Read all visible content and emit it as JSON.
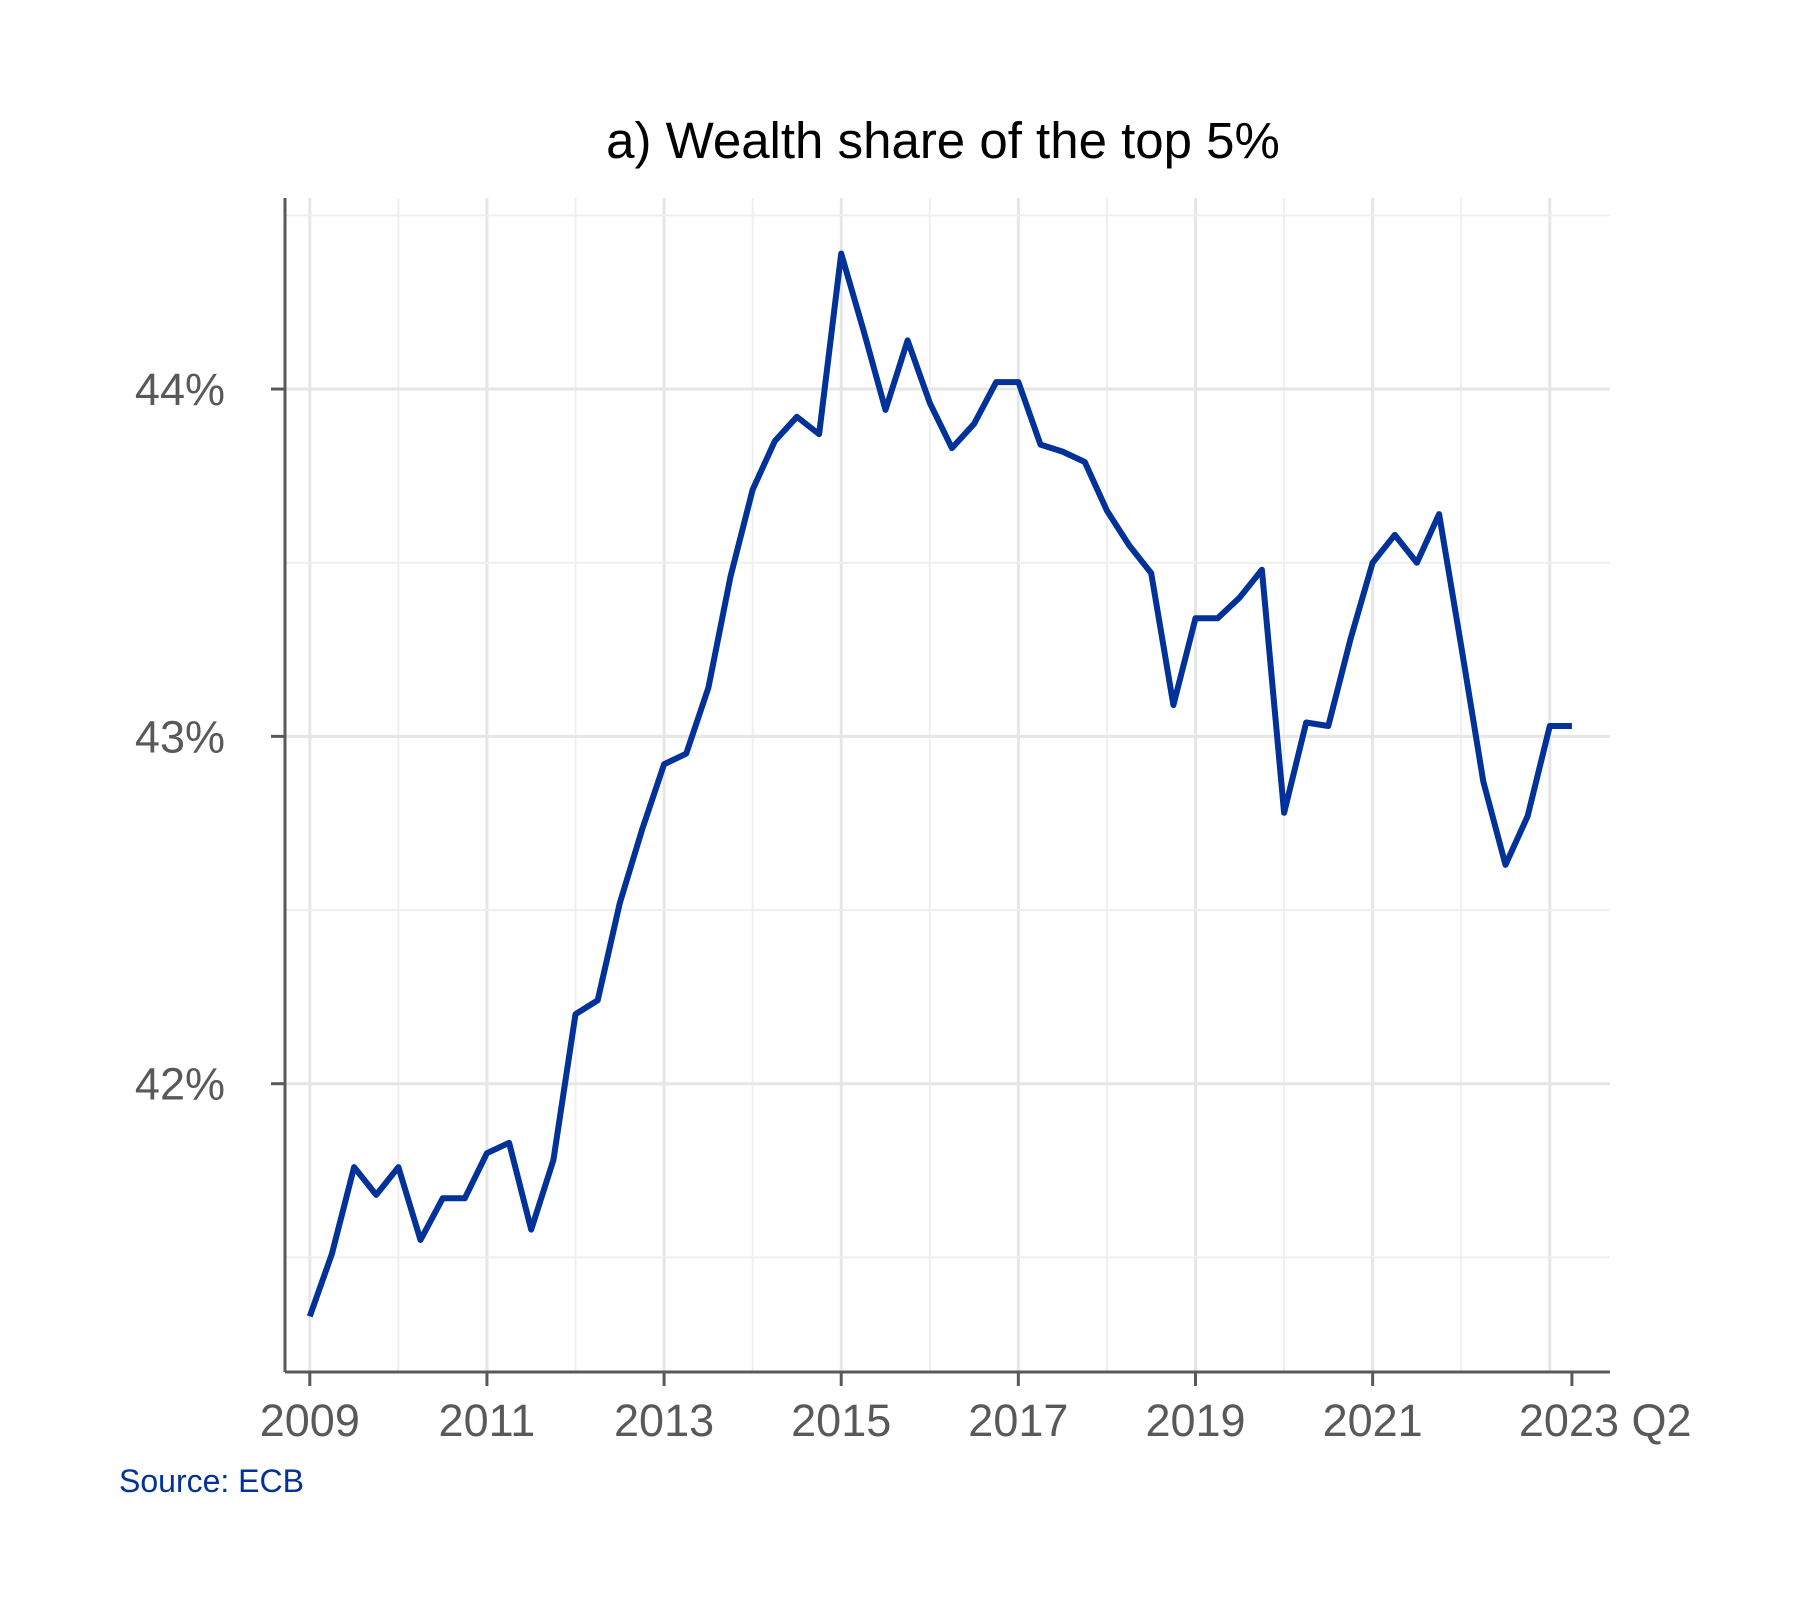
{
  "chart_data": {
    "type": "line",
    "title": "a) Wealth share of the top 5%",
    "xlabel": "",
    "ylabel": "",
    "x_tick_labels": [
      "2009",
      "2011",
      "2013",
      "2015",
      "2017",
      "2019",
      "2021",
      "2023 Q2"
    ],
    "y_tick_labels": [
      "42%",
      "43%",
      "44%"
    ],
    "y_ticks": [
      42,
      43,
      44
    ],
    "ylim": [
      41.17,
      44.55
    ],
    "xlim": [
      2008.72,
      2023.68
    ],
    "grid": true,
    "legend": "none",
    "line_color": "#003299",
    "series": [
      {
        "x": [
          2009.0,
          2009.25,
          2009.5,
          2009.75,
          2010.0,
          2010.25,
          2010.5,
          2010.75,
          2011.0,
          2011.25,
          2011.5,
          2011.75,
          2012.0,
          2012.25,
          2012.5,
          2012.75,
          2013.0,
          2013.25,
          2013.5,
          2013.75,
          2014.0,
          2014.25,
          2014.5,
          2014.75,
          2015.0,
          2015.25,
          2015.5,
          2015.75,
          2016.0,
          2016.25,
          2016.5,
          2016.75,
          2017.0,
          2017.25,
          2017.5,
          2017.75,
          2018.0,
          2018.25,
          2018.5,
          2018.75,
          2019.0,
          2019.25,
          2019.5,
          2019.75,
          2020.0,
          2020.25,
          2020.5,
          2020.75,
          2021.0,
          2021.25,
          2021.5,
          2021.75,
          2022.0,
          2022.25,
          2022.5,
          2022.75,
          2023.0,
          2023.25
        ],
        "values": [
          41.33,
          41.51,
          41.76,
          41.68,
          41.76,
          41.55,
          41.67,
          41.67,
          41.8,
          41.83,
          41.58,
          41.78,
          42.2,
          42.24,
          42.52,
          42.73,
          42.92,
          42.95,
          43.14,
          43.46,
          43.71,
          43.85,
          43.92,
          43.87,
          44.39,
          44.17,
          43.94,
          44.14,
          43.96,
          43.83,
          43.9,
          44.02,
          44.02,
          43.84,
          43.82,
          43.79,
          43.65,
          43.55,
          43.47,
          43.09,
          43.34,
          43.34,
          43.4,
          43.48,
          42.78,
          43.04,
          43.03,
          43.28,
          43.5,
          43.58,
          43.5,
          43.64,
          43.26,
          42.87,
          42.63,
          42.77,
          43.03,
          43.03
        ]
      }
    ]
  },
  "source": "Source: ECB"
}
